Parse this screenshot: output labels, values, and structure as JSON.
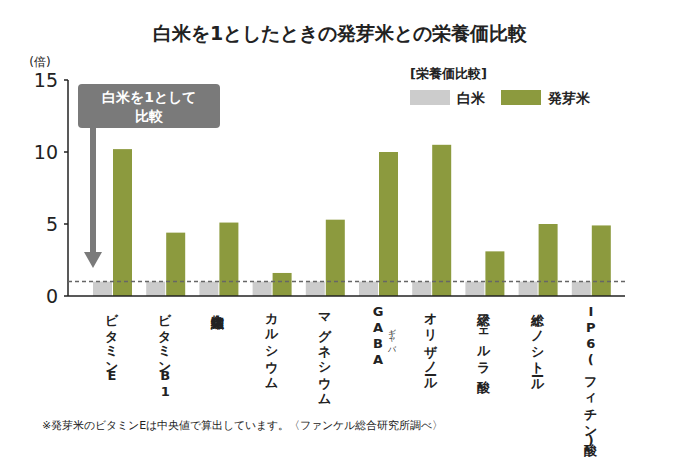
{
  "chart_data": {
    "type": "bar",
    "title": "白米を1としたときの発芽米との栄養価比較",
    "y_label": "(倍)",
    "categories": [
      "ビタミンE",
      "ビタミンB1",
      "食物繊維",
      "カルシウム",
      "マグネシウム",
      "GABA",
      "オリザノール",
      "総フェルラ酸",
      "総イノシトール",
      "IP6(フィチン酸)"
    ],
    "category_ruby": [
      null,
      null,
      null,
      null,
      null,
      "ギャバ",
      null,
      null,
      null,
      null
    ],
    "series": [
      {
        "name": "白米",
        "color": "#cccccc",
        "values": [
          1,
          1,
          1,
          1,
          1,
          1,
          1,
          1,
          1,
          1
        ]
      },
      {
        "name": "発芽米",
        "color": "#8c9a3e",
        "values": [
          10.2,
          4.4,
          5.1,
          1.6,
          5.3,
          10.0,
          10.5,
          3.1,
          5.0,
          4.9
        ]
      }
    ],
    "ylim": [
      0,
      15
    ],
    "yticks": [
      0,
      5,
      10,
      15
    ],
    "grid": false,
    "legend": "top-right",
    "legend_title": "[栄養価比較]",
    "annotation_lines": [
      "白米を1として",
      "比較"
    ],
    "footnote": "※発芽米のビタミンEは中央値で算出しています。〈ファンケル総合研究所調べ〉"
  }
}
